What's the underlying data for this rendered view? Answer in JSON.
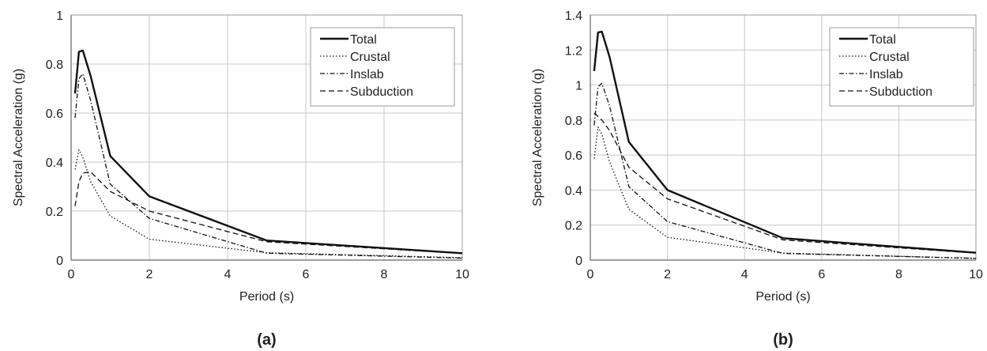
{
  "chart_data": [
    {
      "type": "line",
      "panel_label": "(a)",
      "xlabel": "Period (s)",
      "ylabel": "Spectral Acceleration (g)",
      "xlim": [
        0,
        10
      ],
      "ylim": [
        0,
        1
      ],
      "xticks": [
        "0",
        "2",
        "4",
        "6",
        "8",
        "10"
      ],
      "yticks": [
        "0",
        "0.2",
        "0.4",
        "0.6",
        "0.8",
        "1"
      ],
      "grid": true,
      "legend_position": "top-right",
      "x": [
        0.1,
        0.2,
        0.3,
        0.5,
        1,
        2,
        5,
        10
      ],
      "series": [
        {
          "name": "Total",
          "style": "solid",
          "values": [
            0.68,
            0.85,
            0.855,
            0.75,
            0.425,
            0.26,
            0.08,
            0.028
          ]
        },
        {
          "name": "Crustal",
          "style": "dotted",
          "values": [
            0.37,
            0.45,
            0.42,
            0.32,
            0.18,
            0.085,
            0.03,
            0.01
          ]
        },
        {
          "name": "Inslab",
          "style": "dashdot",
          "values": [
            0.58,
            0.74,
            0.76,
            0.65,
            0.31,
            0.17,
            0.028,
            0.008
          ]
        },
        {
          "name": "Subduction",
          "style": "dashed",
          "values": [
            0.22,
            0.32,
            0.355,
            0.36,
            0.28,
            0.2,
            0.075,
            0.027
          ]
        }
      ]
    },
    {
      "type": "line",
      "panel_label": "(b)",
      "xlabel": "Period (s)",
      "ylabel": "Spectral Acceleration (g)",
      "xlim": [
        0,
        10
      ],
      "ylim": [
        0,
        1.4
      ],
      "xticks": [
        "0",
        "2",
        "4",
        "6",
        "8",
        "10"
      ],
      "yticks": [
        "0",
        "0.2",
        "0.4",
        "0.6",
        "0.8",
        "1",
        "1.2",
        "1.4"
      ],
      "grid": true,
      "legend_position": "top-right",
      "x": [
        0.1,
        0.2,
        0.3,
        0.5,
        1,
        2,
        5,
        10
      ],
      "series": [
        {
          "name": "Total",
          "style": "solid",
          "values": [
            1.08,
            1.3,
            1.305,
            1.16,
            0.675,
            0.4,
            0.125,
            0.042
          ]
        },
        {
          "name": "Crustal",
          "style": "dotted",
          "values": [
            0.58,
            0.76,
            0.72,
            0.56,
            0.29,
            0.13,
            0.04,
            0.01
          ]
        },
        {
          "name": "Inslab",
          "style": "dashdot",
          "values": [
            0.77,
            0.99,
            1.01,
            0.88,
            0.42,
            0.22,
            0.038,
            0.01
          ]
        },
        {
          "name": "Subduction",
          "style": "dashed",
          "values": [
            0.84,
            0.82,
            0.8,
            0.74,
            0.53,
            0.35,
            0.115,
            0.04
          ]
        }
      ]
    }
  ]
}
